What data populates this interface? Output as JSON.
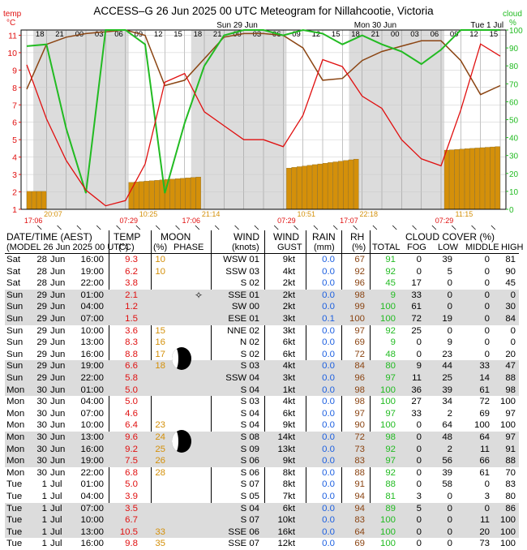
{
  "title": "ACCESS–G  26 Jun 2025 00 UTC  Meteogram for Nillahcootie, Victoria",
  "axis": {
    "left_label_1": "temp",
    "left_label_2": "°C",
    "right_label_1": "cloud",
    "right_label_2": "%",
    "left_ticks": [
      "1",
      "2",
      "3",
      "4",
      "5",
      "6",
      "7",
      "8",
      "9",
      "10",
      "11"
    ],
    "right_ticks": [
      "0",
      "10",
      "20",
      "30",
      "40",
      "50",
      "60",
      "70",
      "80",
      "90",
      "100"
    ]
  },
  "date_labels": [
    "Sun 29 Jun",
    "Mon 30 Jun",
    "Tue 1 Jul"
  ],
  "hour_labels": [
    "18",
    "21",
    "00",
    "03",
    "06",
    "09",
    "12",
    "15",
    "18",
    "21",
    "00",
    "03",
    "06",
    "09",
    "12",
    "15",
    "18",
    "21",
    "00",
    "03",
    "06",
    "09",
    "12",
    "15"
  ],
  "sun_labels": [
    "17:06",
    "07:29",
    "17:06",
    "07:29",
    "17:07",
    "07:29"
  ],
  "moon_labels": [
    "20:07",
    "10:25",
    "21:14",
    "10:51",
    "22:18",
    "11:15"
  ],
  "colors": {
    "temp": "#e01010",
    "rh": "#8b4513",
    "cloud": "#22bb22",
    "rain": "#1c5fe0",
    "moon": "#d4900a",
    "night": "#dcdcdc"
  },
  "chart_data": {
    "type": "line",
    "x_unit": "hours since 28 Jun 2025 16:00 AEST",
    "x": [
      0,
      3,
      6,
      9,
      12,
      15,
      18,
      21,
      24,
      27,
      30,
      33,
      36,
      39,
      42,
      45,
      48,
      51,
      54,
      57,
      60,
      63,
      66,
      69,
      72
    ],
    "ylim_temp": [
      1,
      11.3
    ],
    "ylim_cloud": [
      0,
      100
    ],
    "series": [
      {
        "name": "temp",
        "axis": "left",
        "values": [
          9.3,
          6.2,
          3.8,
          2.1,
          1.2,
          1.5,
          3.6,
          8.3,
          8.8,
          6.6,
          5.8,
          5.0,
          5.0,
          4.6,
          6.4,
          9.6,
          9.2,
          7.5,
          6.8,
          5.0,
          3.9,
          3.5,
          6.7,
          10.5,
          9.8
        ]
      },
      {
        "name": "rh",
        "axis": "right",
        "values": [
          67,
          92,
          96,
          98,
          99,
          100,
          97,
          69,
          72,
          84,
          96,
          98,
          98,
          97,
          90,
          72,
          73,
          83,
          88,
          91,
          94,
          94,
          83,
          64,
          69
        ]
      },
      {
        "name": "cloud",
        "axis": "right",
        "values": [
          91,
          92,
          45,
          9,
          100,
          100,
          92,
          9,
          48,
          80,
          97,
          100,
          100,
          97,
          100,
          98,
          92,
          97,
          92,
          88,
          81,
          89,
          100,
          100,
          100
        ]
      },
      {
        "name": "rain",
        "axis": "right",
        "values": [
          0,
          0,
          0,
          0,
          0,
          0.1,
          0,
          0,
          0,
          0,
          0,
          0,
          0,
          0,
          0,
          0,
          0,
          0,
          0,
          0,
          0,
          0,
          0,
          0,
          0
        ]
      }
    ],
    "moon_phase_pct": [
      10,
      10,
      null,
      null,
      null,
      null,
      15,
      16,
      17,
      18,
      null,
      null,
      null,
      null,
      23,
      24,
      25,
      26,
      28,
      null,
      null,
      null,
      null,
      33,
      35
    ]
  },
  "table": {
    "headers": {
      "datetime": "DATE/TIME (AEST)",
      "model": "(MODEL 26 Jun 2025 00 UTC)",
      "temp": "TEMP",
      "temp_unit": "(°C)",
      "moon": "MOON",
      "moon_pct": "(%)",
      "moon_phase": "PHASE",
      "wind": "WIND",
      "wind_unit": "(knots)",
      "gust": "WIND",
      "gust_sub": "GUST",
      "rain": "RAIN",
      "rain_unit": "(mm)",
      "rh": "RH",
      "rh_unit": "(%)",
      "cloud": "CLOUD COVER (%)",
      "cloud_total": "TOTAL",
      "cloud_fog": "FOG",
      "cloud_low": "LOW",
      "cloud_middle": "MIDDLE",
      "cloud_high": "HIGH"
    },
    "rows": [
      {
        "day": "Sat",
        "date": "28",
        "mon": "Jun",
        "time": "16:00",
        "temp": "9.3",
        "moon": "10",
        "wind": "WSW 01",
        "gust": "9kt",
        "rain": "0.0",
        "rh": "67",
        "total": "91",
        "fog": "0",
        "low": "39",
        "mid": "0",
        "high": "81"
      },
      {
        "day": "Sat",
        "date": "28",
        "mon": "Jun",
        "time": "19:00",
        "temp": "6.2",
        "moon": "10",
        "wind": "SSW 03",
        "gust": "4kt",
        "rain": "0.0",
        "rh": "92",
        "total": "92",
        "fog": "0",
        "low": "5",
        "mid": "0",
        "high": "90"
      },
      {
        "day": "Sat",
        "date": "28",
        "mon": "Jun",
        "time": "22:00",
        "temp": "3.8",
        "moon": "",
        "wind": "S 02",
        "gust": "2kt",
        "rain": "0.0",
        "rh": "96",
        "total": "45",
        "fog": "17",
        "low": "0",
        "mid": "0",
        "high": "45"
      },
      {
        "day": "Sun",
        "date": "29",
        "mon": "Jun",
        "time": "01:00",
        "temp": "2.1",
        "moon": "",
        "wind": "SSE 01",
        "gust": "2kt",
        "rain": "0.0",
        "rh": "98",
        "total": "9",
        "fog": "33",
        "low": "0",
        "mid": "0",
        "high": "0"
      },
      {
        "day": "Sun",
        "date": "29",
        "mon": "Jun",
        "time": "04:00",
        "temp": "1.2",
        "moon": "",
        "wind": "SW 00",
        "gust": "2kt",
        "rain": "0.0",
        "rh": "99",
        "total": "100",
        "fog": "61",
        "low": "0",
        "mid": "0",
        "high": "30"
      },
      {
        "day": "Sun",
        "date": "29",
        "mon": "Jun",
        "time": "07:00",
        "temp": "1.5",
        "moon": "",
        "wind": "ESE 01",
        "gust": "3kt",
        "rain": "0.1",
        "rh": "100",
        "total": "100",
        "fog": "72",
        "low": "19",
        "mid": "0",
        "high": "84"
      },
      {
        "day": "Sun",
        "date": "29",
        "mon": "Jun",
        "time": "10:00",
        "temp": "3.6",
        "moon": "15",
        "wind": "NNE 02",
        "gust": "3kt",
        "rain": "0.0",
        "rh": "97",
        "total": "92",
        "fog": "25",
        "low": "0",
        "mid": "0",
        "high": "0"
      },
      {
        "day": "Sun",
        "date": "29",
        "mon": "Jun",
        "time": "13:00",
        "temp": "8.3",
        "moon": "16",
        "wind": "N 02",
        "gust": "6kt",
        "rain": "0.0",
        "rh": "69",
        "total": "9",
        "fog": "0",
        "low": "9",
        "mid": "0",
        "high": "0"
      },
      {
        "day": "Sun",
        "date": "29",
        "mon": "Jun",
        "time": "16:00",
        "temp": "8.8",
        "moon": "17",
        "wind": "S 02",
        "gust": "6kt",
        "rain": "0.0",
        "rh": "72",
        "total": "48",
        "fog": "0",
        "low": "23",
        "mid": "0",
        "high": "20"
      },
      {
        "day": "Sun",
        "date": "29",
        "mon": "Jun",
        "time": "19:00",
        "temp": "6.6",
        "moon": "18",
        "wind": "S 03",
        "gust": "4kt",
        "rain": "0.0",
        "rh": "84",
        "total": "80",
        "fog": "9",
        "low": "44",
        "mid": "33",
        "high": "47"
      },
      {
        "day": "Sun",
        "date": "29",
        "mon": "Jun",
        "time": "22:00",
        "temp": "5.8",
        "moon": "",
        "wind": "SSW 04",
        "gust": "3kt",
        "rain": "0.0",
        "rh": "96",
        "total": "97",
        "fog": "11",
        "low": "25",
        "mid": "14",
        "high": "88"
      },
      {
        "day": "Mon",
        "date": "30",
        "mon": "Jun",
        "time": "01:00",
        "temp": "5.0",
        "moon": "",
        "wind": "S 04",
        "gust": "1kt",
        "rain": "0.0",
        "rh": "98",
        "total": "100",
        "fog": "36",
        "low": "39",
        "mid": "61",
        "high": "98"
      },
      {
        "day": "Mon",
        "date": "30",
        "mon": "Jun",
        "time": "04:00",
        "temp": "5.0",
        "moon": "",
        "wind": "S 03",
        "gust": "4kt",
        "rain": "0.0",
        "rh": "98",
        "total": "100",
        "fog": "27",
        "low": "34",
        "mid": "72",
        "high": "100"
      },
      {
        "day": "Mon",
        "date": "30",
        "mon": "Jun",
        "time": "07:00",
        "temp": "4.6",
        "moon": "",
        "wind": "S 04",
        "gust": "6kt",
        "rain": "0.0",
        "rh": "97",
        "total": "97",
        "fog": "33",
        "low": "2",
        "mid": "69",
        "high": "97"
      },
      {
        "day": "Mon",
        "date": "30",
        "mon": "Jun",
        "time": "10:00",
        "temp": "6.4",
        "moon": "23",
        "wind": "S 04",
        "gust": "9kt",
        "rain": "0.0",
        "rh": "90",
        "total": "100",
        "fog": "0",
        "low": "64",
        "mid": "100",
        "high": "100"
      },
      {
        "day": "Mon",
        "date": "30",
        "mon": "Jun",
        "time": "13:00",
        "temp": "9.6",
        "moon": "24",
        "wind": "S 08",
        "gust": "14kt",
        "rain": "0.0",
        "rh": "72",
        "total": "98",
        "fog": "0",
        "low": "48",
        "mid": "64",
        "high": "97"
      },
      {
        "day": "Mon",
        "date": "30",
        "mon": "Jun",
        "time": "16:00",
        "temp": "9.2",
        "moon": "25",
        "wind": "S 09",
        "gust": "13kt",
        "rain": "0.0",
        "rh": "73",
        "total": "92",
        "fog": "0",
        "low": "2",
        "mid": "11",
        "high": "91"
      },
      {
        "day": "Mon",
        "date": "30",
        "mon": "Jun",
        "time": "19:00",
        "temp": "7.5",
        "moon": "26",
        "wind": "S 06",
        "gust": "9kt",
        "rain": "0.0",
        "rh": "83",
        "total": "97",
        "fog": "0",
        "low": "56",
        "mid": "66",
        "high": "88"
      },
      {
        "day": "Mon",
        "date": "30",
        "mon": "Jun",
        "time": "22:00",
        "temp": "6.8",
        "moon": "28",
        "wind": "S 06",
        "gust": "8kt",
        "rain": "0.0",
        "rh": "88",
        "total": "92",
        "fog": "0",
        "low": "39",
        "mid": "61",
        "high": "70"
      },
      {
        "day": "Tue",
        "date": "1",
        "mon": "Jul",
        "time": "01:00",
        "temp": "5.0",
        "moon": "",
        "wind": "S 07",
        "gust": "8kt",
        "rain": "0.0",
        "rh": "91",
        "total": "88",
        "fog": "0",
        "low": "58",
        "mid": "0",
        "high": "83"
      },
      {
        "day": "Tue",
        "date": "1",
        "mon": "Jul",
        "time": "04:00",
        "temp": "3.9",
        "moon": "",
        "wind": "S 05",
        "gust": "7kt",
        "rain": "0.0",
        "rh": "94",
        "total": "81",
        "fog": "3",
        "low": "0",
        "mid": "3",
        "high": "80"
      },
      {
        "day": "Tue",
        "date": "1",
        "mon": "Jul",
        "time": "07:00",
        "temp": "3.5",
        "moon": "",
        "wind": "S 04",
        "gust": "6kt",
        "rain": "0.0",
        "rh": "94",
        "total": "89",
        "fog": "5",
        "low": "0",
        "mid": "0",
        "high": "86"
      },
      {
        "day": "Tue",
        "date": "1",
        "mon": "Jul",
        "time": "10:00",
        "temp": "6.7",
        "moon": "",
        "wind": "S 07",
        "gust": "10kt",
        "rain": "0.0",
        "rh": "83",
        "total": "100",
        "fog": "0",
        "low": "0",
        "mid": "11",
        "high": "100"
      },
      {
        "day": "Tue",
        "date": "1",
        "mon": "Jul",
        "time": "13:00",
        "temp": "10.5",
        "moon": "33",
        "wind": "SSE 06",
        "gust": "16kt",
        "rain": "0.0",
        "rh": "64",
        "total": "100",
        "fog": "0",
        "low": "0",
        "mid": "20",
        "high": "100"
      },
      {
        "day": "Tue",
        "date": "1",
        "mon": "Jul",
        "time": "16:00",
        "temp": "9.8",
        "moon": "35",
        "wind": "SSE 07",
        "gust": "12kt",
        "rain": "0.0",
        "rh": "69",
        "total": "100",
        "fog": "0",
        "low": "0",
        "mid": "73",
        "high": "100"
      }
    ]
  }
}
